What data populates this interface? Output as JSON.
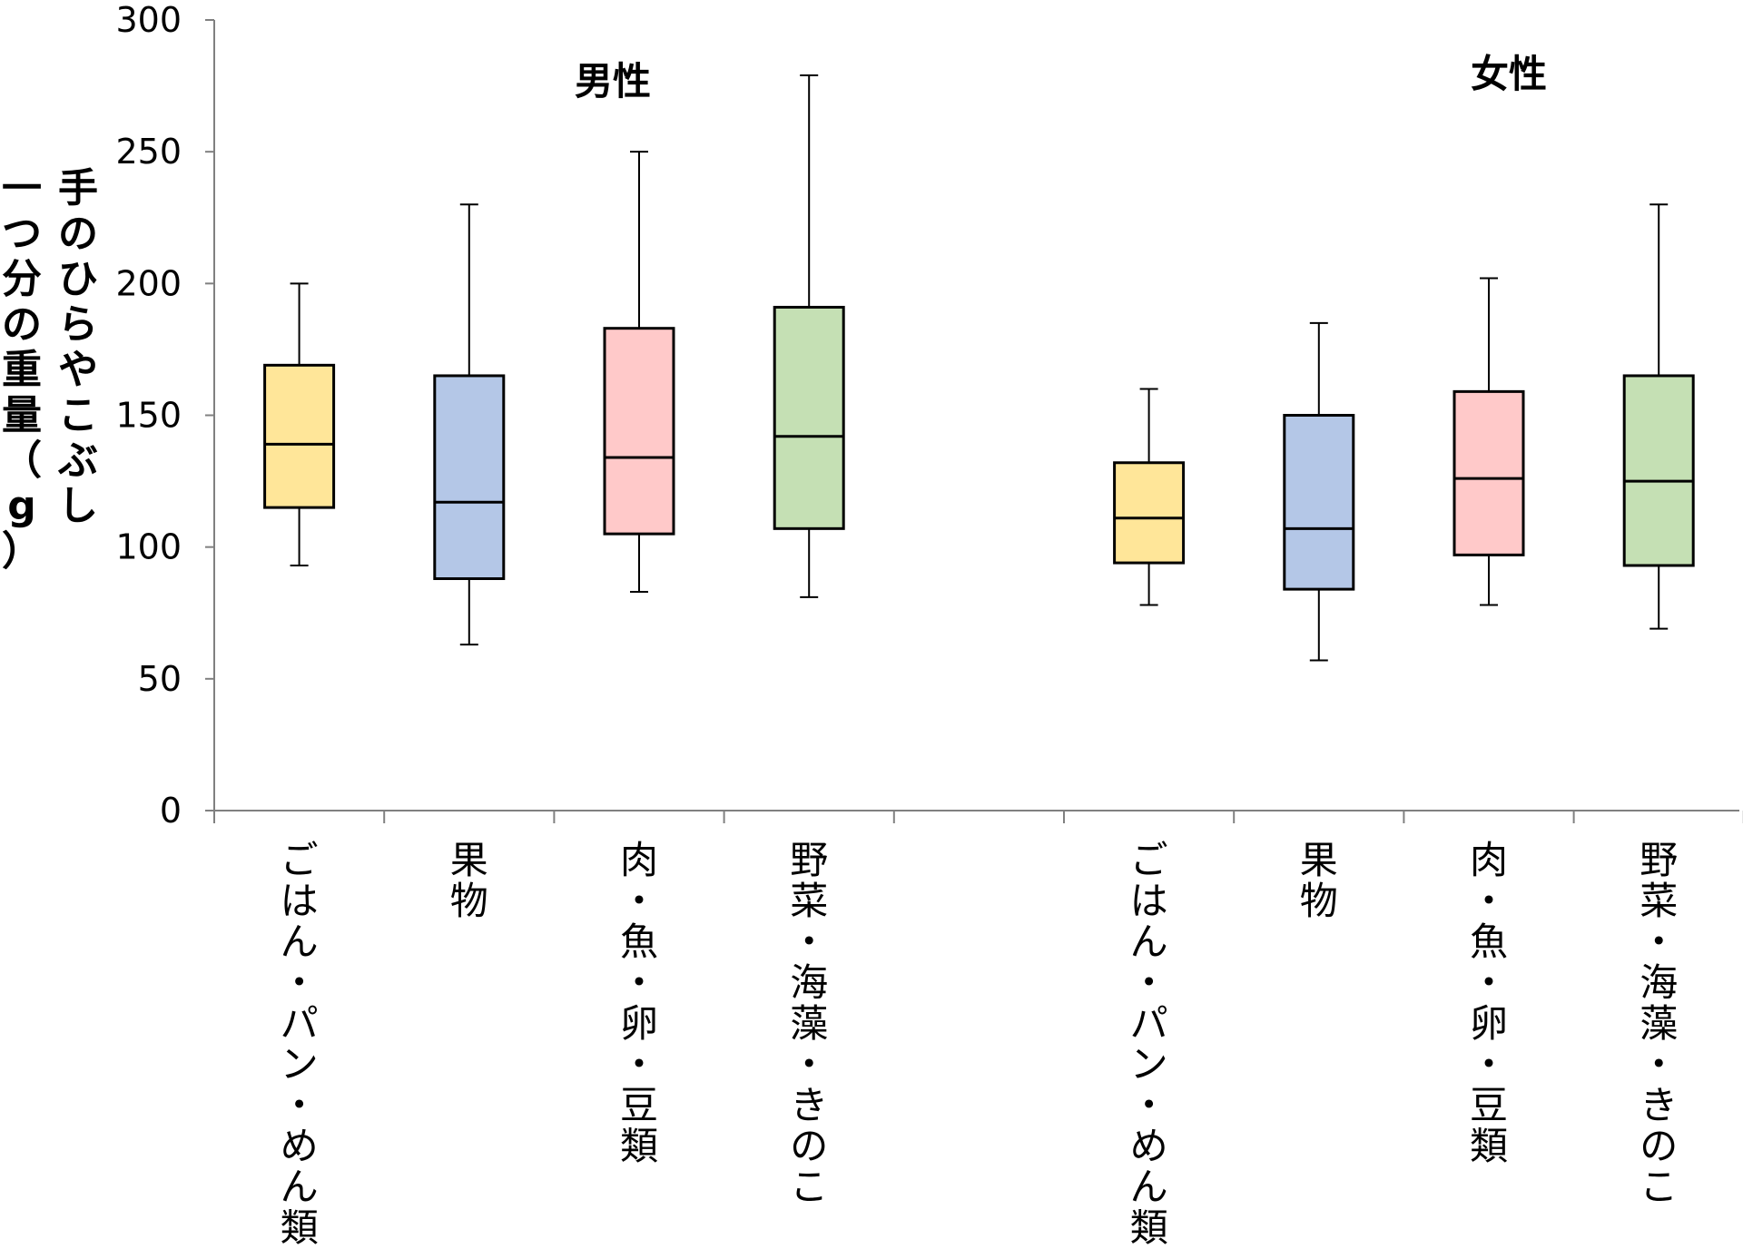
{
  "chart_data": {
    "type": "box",
    "ylabel_lines": [
      "手のひらやこぶし",
      "一つ分の重量（g）"
    ],
    "ylim": [
      0,
      300
    ],
    "yticks": [
      0,
      50,
      100,
      150,
      200,
      250,
      300
    ],
    "grid": false,
    "legend": "none",
    "groups": [
      {
        "label": "男性",
        "boxes": [
          {
            "category": "ごはん・パン・めん類",
            "whisker_low": 93,
            "q1": 115,
            "median": 139,
            "q3": 169,
            "whisker_high": 200,
            "color": "#FFE699"
          },
          {
            "category": "果物",
            "whisker_low": 63,
            "q1": 88,
            "median": 117,
            "q3": 165,
            "whisker_high": 230,
            "color": "#B4C7E7"
          },
          {
            "category": "肉・魚・卵・豆類",
            "whisker_low": 83,
            "q1": 105,
            "median": 134,
            "q3": 183,
            "whisker_high": 250,
            "color": "#FFC9C9"
          },
          {
            "category": "野菜・海藻・きのこ",
            "whisker_low": 81,
            "q1": 107,
            "median": 142,
            "q3": 191,
            "whisker_high": 279,
            "color": "#C5E0B4"
          }
        ]
      },
      {
        "label": "女性",
        "boxes": [
          {
            "category": "ごはん・パン・めん類",
            "whisker_low": 78,
            "q1": 94,
            "median": 111,
            "q3": 132,
            "whisker_high": 160,
            "color": "#FFE699"
          },
          {
            "category": "果物",
            "whisker_low": 57,
            "q1": 84,
            "median": 107,
            "q3": 150,
            "whisker_high": 185,
            "color": "#B4C7E7"
          },
          {
            "category": "肉・魚・卵・豆類",
            "whisker_low": 78,
            "q1": 97,
            "median": 126,
            "q3": 159,
            "whisker_high": 202,
            "color": "#FFC9C9"
          },
          {
            "category": "野菜・海藻・きのこ",
            "whisker_low": 69,
            "q1": 93,
            "median": 125,
            "q3": 165,
            "whisker_high": 230,
            "color": "#C5E0B4"
          }
        ]
      }
    ]
  }
}
